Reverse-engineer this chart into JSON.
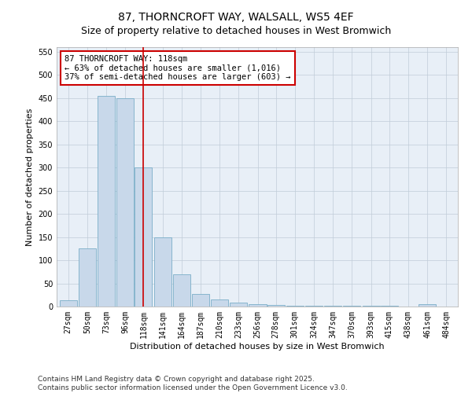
{
  "title": "87, THORNCROFT WAY, WALSALL, WS5 4EF",
  "subtitle": "Size of property relative to detached houses in West Bromwich",
  "xlabel": "Distribution of detached houses by size in West Bromwich",
  "ylabel": "Number of detached properties",
  "annotation_title": "87 THORNCROFT WAY: 118sqm",
  "annotation_line1": "← 63% of detached houses are smaller (1,016)",
  "annotation_line2": "37% of semi-detached houses are larger (603) →",
  "footer_line1": "Contains HM Land Registry data © Crown copyright and database right 2025.",
  "footer_line2": "Contains public sector information licensed under the Open Government Licence v3.0.",
  "property_size": 118,
  "categories": [
    27,
    50,
    73,
    96,
    118,
    141,
    164,
    187,
    210,
    233,
    256,
    278,
    301,
    324,
    347,
    370,
    393,
    415,
    438,
    461,
    484
  ],
  "values": [
    13,
    125,
    455,
    450,
    300,
    150,
    70,
    28,
    15,
    8,
    5,
    3,
    2,
    2,
    2,
    1,
    1,
    1,
    0,
    5,
    0
  ],
  "bar_color": "#c8d8ea",
  "bar_edge_color": "#7aaec8",
  "line_color": "#cc0000",
  "annotation_box_edge": "#cc0000",
  "plot_bg_color": "#e8eff7",
  "fig_bg_color": "#ffffff",
  "grid_color": "#c0ccd8",
  "ylim": [
    0,
    560
  ],
  "yticks": [
    0,
    50,
    100,
    150,
    200,
    250,
    300,
    350,
    400,
    450,
    500,
    550
  ],
  "title_fontsize": 10,
  "subtitle_fontsize": 9,
  "xlabel_fontsize": 8,
  "ylabel_fontsize": 8,
  "tick_fontsize": 7,
  "annotation_fontsize": 7.5,
  "footer_fontsize": 6.5
}
